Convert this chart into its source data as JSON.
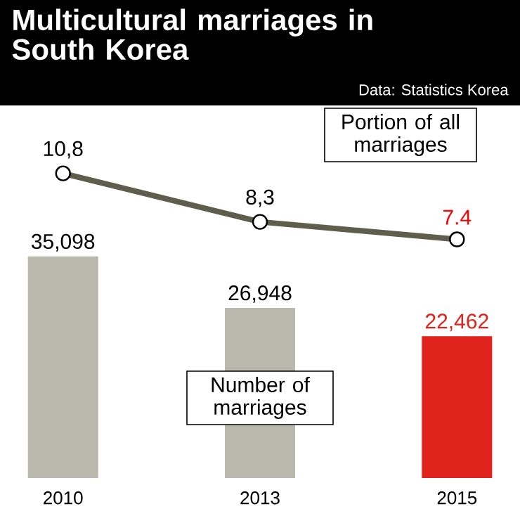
{
  "chart_data": {
    "type": "bar",
    "title": "Multicultural marriages in South Korea",
    "annotations": [
      "Data: Statistics Korea"
    ],
    "categories": [
      "2010",
      "2013",
      "2015"
    ],
    "tick_labels": "x",
    "ylim": [
      0,
      59000
    ],
    "y2lim": [
      -4.9,
      14.3
    ],
    "series": [
      {
        "name": "Number of marriages",
        "color": "#b9b8ad",
        "colors": [
          "#b9b8ad",
          "#b9b8ad",
          "#e0231c"
        ],
        "values": [
          35098,
          26948,
          22462
        ],
        "value_labels": [
          "35,098",
          "26,948",
          "22,462"
        ]
      },
      {
        "name": "Portion of all marriages",
        "type": "line",
        "axis": "y2",
        "color": "#5f5e4c",
        "marker": "circle",
        "values": [
          10.8,
          8.3,
          7.4
        ],
        "value_labels": [
          "10,8",
          "8,3",
          "7.4"
        ]
      }
    ]
  }
}
